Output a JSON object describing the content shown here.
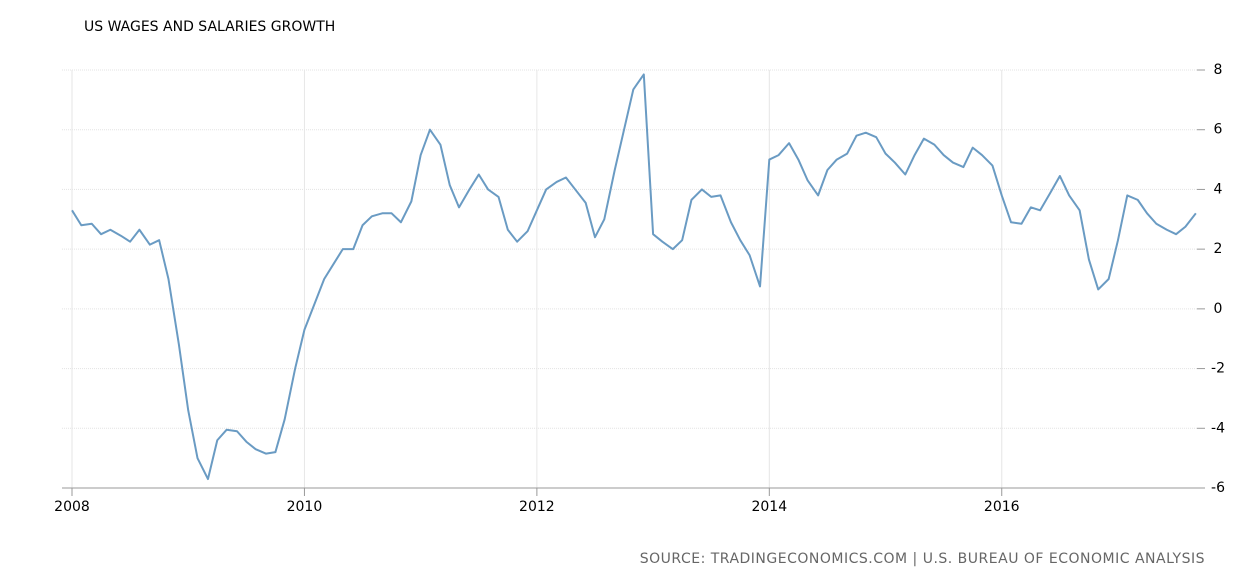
{
  "chart_data": {
    "type": "line",
    "title": "US WAGES AND SALARIES GROWTH",
    "source": "SOURCE: TRADINGECONOMICS.COM | U.S. BUREAU OF ECONOMIC ANALYSIS",
    "x": [
      2008.0,
      2008.08,
      2008.17,
      2008.25,
      2008.33,
      2008.42,
      2008.5,
      2008.58,
      2008.67,
      2008.75,
      2008.83,
      2008.92,
      2009.0,
      2009.08,
      2009.17,
      2009.25,
      2009.33,
      2009.42,
      2009.5,
      2009.58,
      2009.67,
      2009.75,
      2009.83,
      2009.92,
      2010.0,
      2010.08,
      2010.17,
      2010.25,
      2010.33,
      2010.42,
      2010.5,
      2010.58,
      2010.67,
      2010.75,
      2010.83,
      2010.92,
      2011.0,
      2011.08,
      2011.17,
      2011.25,
      2011.33,
      2011.42,
      2011.5,
      2011.58,
      2011.67,
      2011.75,
      2011.83,
      2011.92,
      2012.0,
      2012.08,
      2012.17,
      2012.25,
      2012.33,
      2012.42,
      2012.5,
      2012.58,
      2012.67,
      2012.75,
      2012.83,
      2012.92,
      2013.0,
      2013.08,
      2013.17,
      2013.25,
      2013.33,
      2013.42,
      2013.5,
      2013.58,
      2013.67,
      2013.75,
      2013.83,
      2013.92,
      2014.0,
      2014.08,
      2014.17,
      2014.25,
      2014.33,
      2014.42,
      2014.5,
      2014.58,
      2014.67,
      2014.75,
      2014.83,
      2014.92,
      2015.0,
      2015.08,
      2015.17,
      2015.25,
      2015.33,
      2015.42,
      2015.5,
      2015.58,
      2015.67,
      2015.75,
      2015.83,
      2015.92,
      2016.0,
      2016.08,
      2016.17,
      2016.25,
      2016.33,
      2016.42,
      2016.5,
      2016.58,
      2016.67,
      2016.75,
      2016.83,
      2016.92,
      2017.0,
      2017.08,
      2017.17,
      2017.25,
      2017.33,
      2017.42,
      2017.5,
      2017.58,
      2017.67
    ],
    "series": [
      {
        "color": "#6a9bc3",
        "values": [
          3.3,
          2.8,
          2.85,
          2.5,
          2.65,
          2.45,
          2.25,
          2.65,
          2.15,
          2.3,
          1.0,
          -1.2,
          -3.4,
          -5.0,
          -5.7,
          -4.4,
          -4.05,
          -4.1,
          -4.45,
          -4.7,
          -4.85,
          -4.8,
          -3.7,
          -2.0,
          -0.7,
          0.1,
          1.0,
          1.5,
          2.0,
          2.0,
          2.8,
          3.1,
          3.2,
          3.2,
          2.9,
          3.6,
          5.15,
          6.0,
          5.5,
          4.15,
          3.4,
          4.0,
          4.5,
          4.0,
          3.75,
          2.65,
          2.25,
          2.6,
          3.3,
          4.0,
          4.25,
          4.4,
          4.0,
          3.55,
          2.4,
          3.0,
          4.65,
          6.0,
          7.35,
          7.85,
          2.5,
          2.25,
          2.0,
          2.3,
          3.65,
          4.0,
          3.75,
          3.8,
          2.9,
          2.3,
          1.8,
          0.75,
          5.0,
          5.15,
          5.55,
          5.0,
          4.3,
          3.8,
          4.65,
          5.0,
          5.2,
          5.8,
          5.9,
          5.75,
          5.2,
          4.9,
          4.5,
          5.15,
          5.7,
          5.5,
          5.15,
          4.9,
          4.75,
          5.4,
          5.15,
          4.8,
          3.8,
          2.9,
          2.85,
          3.4,
          3.3,
          3.9,
          4.45,
          3.8,
          3.3,
          1.65,
          0.65,
          1.0,
          2.3,
          3.8,
          3.65,
          3.2,
          2.85,
          2.65,
          2.5,
          2.75,
          3.2
        ]
      }
    ],
    "xlim": [
      2008,
      2017.68
    ],
    "xticks": [
      2008,
      2010,
      2012,
      2014,
      2016
    ],
    "ylim": [
      -6,
      8
    ],
    "yticks": [
      -6,
      -4,
      -2,
      0,
      2,
      4,
      6,
      8
    ],
    "grid": true
  }
}
